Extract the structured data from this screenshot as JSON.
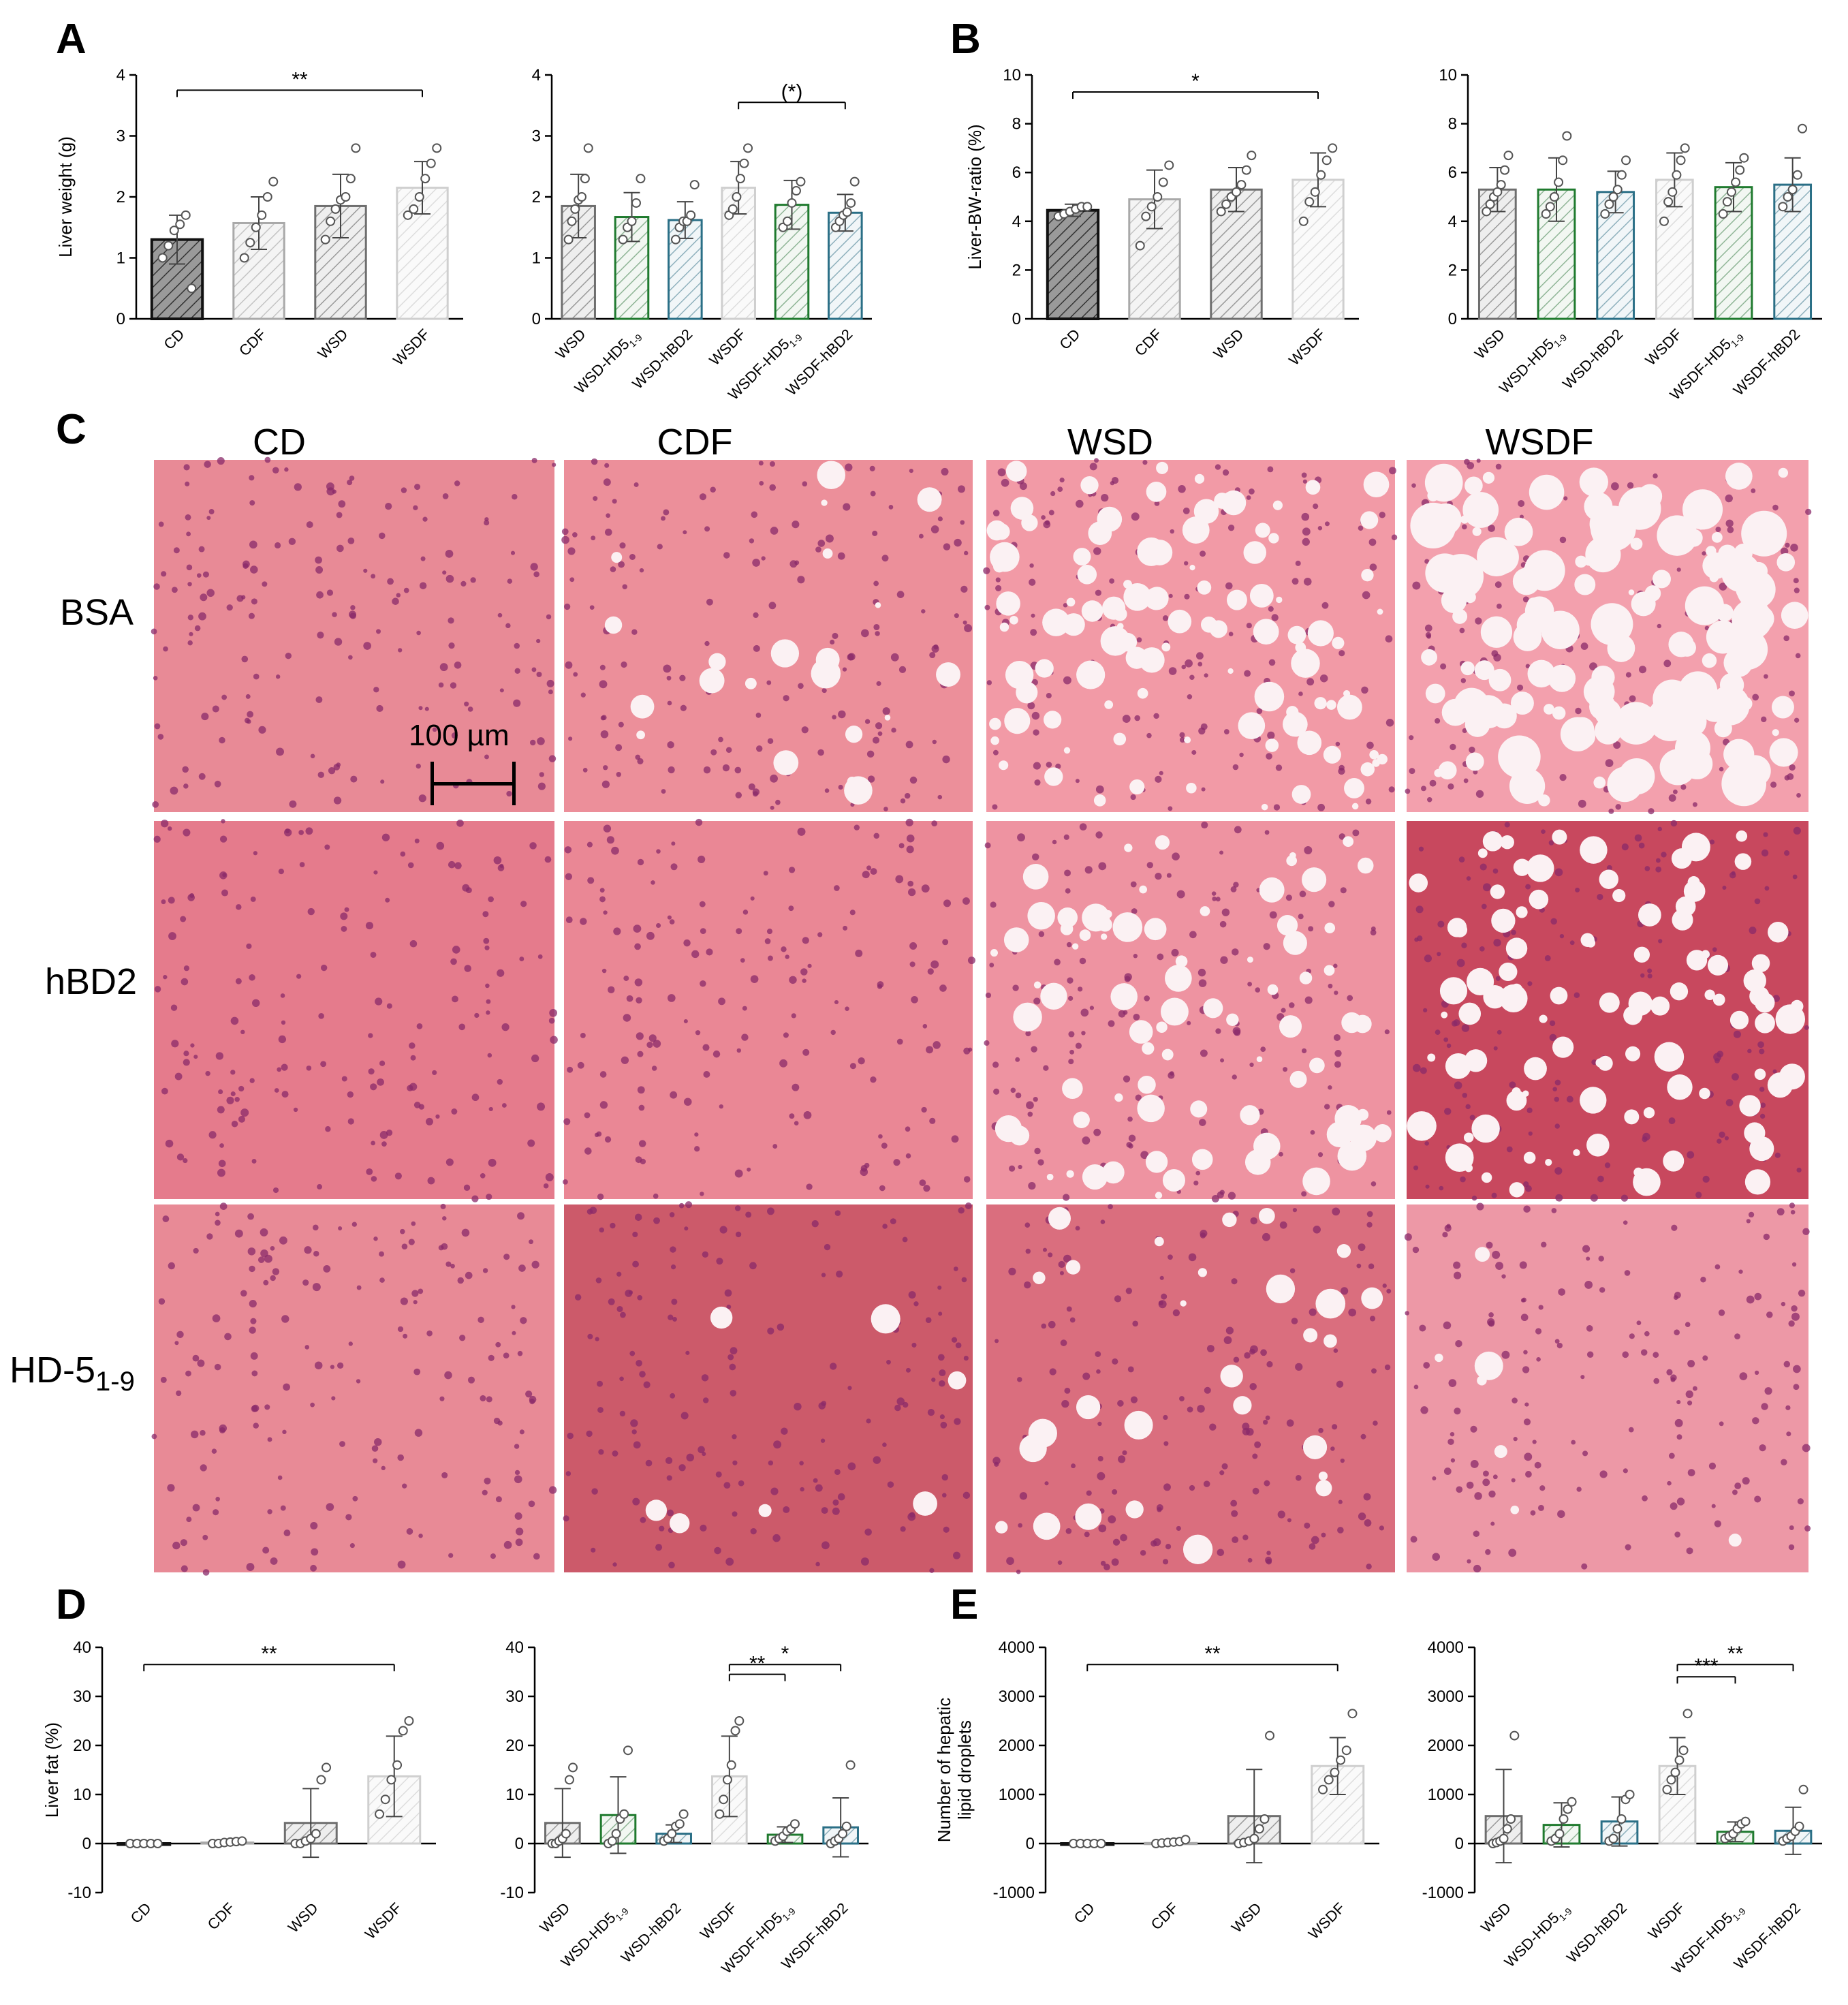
{
  "panel_letters": [
    "A",
    "B",
    "C",
    "D",
    "E"
  ],
  "grid": {
    "columns": [
      "CD",
      "CDF",
      "WSD",
      "WSDF"
    ],
    "rows": [
      "BSA",
      "hBD2",
      "HD-5"
    ],
    "row_subscript": "1-9",
    "scale_bar_label": "100 µm"
  },
  "colors": {
    "black_bar": "#222222",
    "light_grey": "#b8b8b8",
    "dark_grey": "#7a7a7a",
    "pale_grey": "#d9d9d9",
    "green": "#1f7a2e",
    "teal": "#2a6f86",
    "tissue_pink": "#e46a7c",
    "nucleus": "#8a2a6a"
  },
  "chart_data": [
    {
      "type": "bar",
      "ylabel": "Liver weight (g)",
      "ylim": [
        0,
        4
      ],
      "yticks": [
        0,
        1,
        2,
        3,
        4
      ],
      "categories": [
        "CD",
        "CDF",
        "WSD",
        "WSDF"
      ],
      "values": [
        1.3,
        1.57,
        1.85,
        2.15
      ],
      "errors": [
        0.4,
        0.43,
        0.52,
        0.43
      ],
      "bar_colors": [
        "black_bar",
        "light_grey",
        "dark_grey",
        "pale_grey"
      ],
      "points": [
        [
          1.0,
          1.2,
          1.45,
          1.55,
          1.7,
          0.5
        ],
        [
          1.0,
          1.25,
          1.5,
          1.7,
          2.0,
          2.25
        ],
        [
          1.3,
          1.6,
          1.8,
          1.95,
          2.0,
          2.3,
          2.8
        ],
        [
          1.7,
          1.8,
          2.0,
          2.3,
          2.55,
          2.8
        ]
      ],
      "brackets": [
        {
          "from": 0,
          "to": 3,
          "level": 3.75,
          "label": "**"
        }
      ]
    },
    {
      "type": "bar",
      "ylabel": "",
      "ylim": [
        0,
        4
      ],
      "yticks": [
        0,
        1,
        2,
        3,
        4
      ],
      "categories": [
        "WSD",
        "WSD-HD5",
        "WSD-hBD2",
        "WSDF",
        "WSDF-HD5",
        "WSDF-hBD2"
      ],
      "subscript": [
        "",
        "1-9",
        "",
        "",
        "1-9",
        ""
      ],
      "values": [
        1.85,
        1.67,
        1.62,
        2.15,
        1.87,
        1.74
      ],
      "errors": [
        0.52,
        0.4,
        0.3,
        0.43,
        0.4,
        0.3
      ],
      "bar_colors": [
        "dark_grey",
        "green",
        "teal",
        "pale_grey",
        "green",
        "teal"
      ],
      "points": [
        [
          1.3,
          1.6,
          1.8,
          1.95,
          2.0,
          2.3,
          2.8
        ],
        [
          1.3,
          1.5,
          1.6,
          1.9,
          2.3
        ],
        [
          1.3,
          1.5,
          1.6,
          1.6,
          1.7,
          2.2
        ],
        [
          1.7,
          1.8,
          2.0,
          2.3,
          2.55,
          2.8
        ],
        [
          1.5,
          1.6,
          1.9,
          2.1,
          2.25
        ],
        [
          1.5,
          1.6,
          1.7,
          1.75,
          1.9,
          2.25
        ]
      ],
      "brackets": [
        {
          "from": 3,
          "to": 5,
          "level": 3.55,
          "label": "(*)"
        }
      ]
    },
    {
      "type": "bar",
      "ylabel": "Liver-BW-ratio (%)",
      "ylim": [
        0,
        10
      ],
      "yticks": [
        0,
        2,
        4,
        6,
        8,
        10
      ],
      "categories": [
        "CD",
        "CDF",
        "WSD",
        "WSDF"
      ],
      "values": [
        4.45,
        4.9,
        5.3,
        5.7
      ],
      "errors": [
        0.25,
        1.2,
        0.9,
        1.1
      ],
      "bar_colors": [
        "black_bar",
        "light_grey",
        "dark_grey",
        "pale_grey"
      ],
      "points": [
        [
          4.2,
          4.3,
          4.4,
          4.5,
          4.6,
          4.6
        ],
        [
          3.0,
          4.2,
          4.6,
          5.0,
          5.6,
          6.3
        ],
        [
          4.4,
          4.7,
          5.0,
          5.2,
          5.5,
          6.1,
          6.7
        ],
        [
          4.0,
          4.8,
          5.2,
          5.9,
          6.5,
          7.0
        ]
      ],
      "brackets": [
        {
          "from": 0,
          "to": 3,
          "level": 9.3,
          "label": "*"
        }
      ]
    },
    {
      "type": "bar",
      "ylabel": "",
      "ylim": [
        0,
        10
      ],
      "yticks": [
        0,
        2,
        4,
        6,
        8,
        10
      ],
      "categories": [
        "WSD",
        "WSD-HD5",
        "WSD-hBD2",
        "WSDF",
        "WSDF-HD5",
        "WSDF-hBD2"
      ],
      "subscript": [
        "",
        "1-9",
        "",
        "",
        "1-9",
        ""
      ],
      "values": [
        5.3,
        5.3,
        5.2,
        5.7,
        5.4,
        5.5
      ],
      "errors": [
        0.9,
        1.3,
        0.85,
        1.1,
        1.0,
        1.1
      ],
      "bar_colors": [
        "dark_grey",
        "green",
        "teal",
        "pale_grey",
        "green",
        "teal"
      ],
      "points": [
        [
          4.4,
          4.7,
          5.0,
          5.2,
          5.5,
          6.1,
          6.7
        ],
        [
          4.3,
          4.6,
          5.0,
          5.6,
          6.5,
          7.5
        ],
        [
          4.3,
          4.7,
          5.0,
          5.3,
          5.9,
          6.5
        ],
        [
          4.0,
          4.8,
          5.2,
          5.9,
          6.5,
          7.0
        ],
        [
          4.3,
          4.8,
          5.2,
          5.6,
          6.1,
          6.6
        ],
        [
          4.6,
          5.0,
          5.3,
          5.9,
          7.8
        ]
      ],
      "brackets": []
    },
    {
      "type": "bar",
      "ylabel": "Liver fat (%)",
      "ylim": [
        -10,
        40
      ],
      "yticks": [
        -10,
        0,
        10,
        20,
        30,
        40
      ],
      "categories": [
        "CD",
        "CDF",
        "WSD",
        "WSDF"
      ],
      "values": [
        0.0,
        0.2,
        4.2,
        13.7
      ],
      "errors": [
        0,
        0,
        7.0,
        8.2
      ],
      "bar_colors": [
        "black_bar",
        "light_grey",
        "dark_grey",
        "pale_grey"
      ],
      "points": [
        [
          0,
          0,
          0,
          0,
          0
        ],
        [
          0,
          0,
          0.2,
          0.3,
          0.4,
          0.5
        ],
        [
          0,
          0,
          0.5,
          1.0,
          2.0,
          13.0,
          15.5
        ],
        [
          6.0,
          9.0,
          13.0,
          16.0,
          23.0,
          25.0
        ]
      ],
      "brackets": [
        {
          "from": 0,
          "to": 3,
          "level": 36.5,
          "label": "**"
        }
      ]
    },
    {
      "type": "bar",
      "ylabel": "",
      "ylim": [
        -10,
        40
      ],
      "yticks": [
        -10,
        0,
        10,
        20,
        30,
        40
      ],
      "categories": [
        "WSD",
        "WSD-HD5",
        "WSD-hBD2",
        "WSDF",
        "WSDF-HD5",
        "WSDF-hBD2"
      ],
      "subscript": [
        "",
        "1-9",
        "",
        "",
        "1-9",
        ""
      ],
      "values": [
        4.2,
        5.8,
        2.0,
        13.7,
        1.8,
        3.3
      ],
      "errors": [
        7.0,
        7.8,
        1.8,
        8.2,
        1.6,
        6.0
      ],
      "bar_colors": [
        "dark_grey",
        "green",
        "teal",
        "pale_grey",
        "green",
        "teal"
      ],
      "points": [
        [
          0,
          0,
          0.5,
          1.0,
          2.0,
          13.0,
          15.5
        ],
        [
          0,
          0.5,
          2.0,
          5.0,
          6.0,
          19.0
        ],
        [
          0.5,
          1.0,
          2.0,
          3.5,
          4.0,
          6.0
        ],
        [
          6.0,
          9.0,
          13.0,
          16.0,
          23.0,
          25.0
        ],
        [
          0.5,
          1.0,
          1.5,
          2.5,
          3.0,
          4.0
        ],
        [
          0,
          0.5,
          1.0,
          2.0,
          3.5,
          16.0
        ]
      ],
      "brackets": [
        {
          "from": 3,
          "to": 4,
          "level": 34.5,
          "label": "**"
        },
        {
          "from": 3,
          "to": 5,
          "level": 36.5,
          "label": "*"
        }
      ]
    },
    {
      "type": "bar",
      "ylabel": "Number of hepatic lipid droplets",
      "ylim": [
        -1000,
        4000
      ],
      "yticks": [
        -1000,
        0,
        1000,
        2000,
        3000,
        4000
      ],
      "categories": [
        "CD",
        "CDF",
        "WSD",
        "WSDF"
      ],
      "values": [
        0,
        10,
        560,
        1580
      ],
      "errors": [
        0,
        0,
        950,
        580
      ],
      "bar_colors": [
        "black_bar",
        "light_grey",
        "dark_grey",
        "pale_grey"
      ],
      "points": [
        [
          0,
          0,
          0,
          0,
          0
        ],
        [
          0,
          10,
          20,
          30,
          40,
          80
        ],
        [
          0,
          20,
          50,
          100,
          300,
          500,
          2200
        ],
        [
          1100,
          1300,
          1450,
          1700,
          1900,
          2650
        ]
      ],
      "brackets": [
        {
          "from": 0,
          "to": 3,
          "level": 3650,
          "label": "**"
        }
      ]
    },
    {
      "type": "bar",
      "ylabel": "",
      "ylim": [
        -1000,
        4000
      ],
      "yticks": [
        -1000,
        0,
        1000,
        2000,
        3000,
        4000
      ],
      "categories": [
        "WSD",
        "WSD-HD5",
        "WSD-hBD2",
        "WSDF",
        "WSDF-HD5",
        "WSDF-hBD2"
      ],
      "subscript": [
        "",
        "1-9",
        "",
        "",
        "1-9",
        ""
      ],
      "values": [
        560,
        380,
        450,
        1580,
        240,
        260
      ],
      "errors": [
        950,
        450,
        500,
        580,
        200,
        480
      ],
      "bar_colors": [
        "dark_grey",
        "green",
        "teal",
        "pale_grey",
        "green",
        "teal"
      ],
      "points": [
        [
          0,
          20,
          50,
          100,
          300,
          500,
          2200
        ],
        [
          50,
          100,
          200,
          500,
          700,
          850
        ],
        [
          50,
          100,
          300,
          500,
          900,
          1000
        ],
        [
          1100,
          1300,
          1450,
          1700,
          1900,
          2650
        ],
        [
          100,
          150,
          200,
          300,
          400,
          450
        ],
        [
          50,
          100,
          150,
          250,
          350,
          1100
        ]
      ],
      "brackets": [
        {
          "from": 3,
          "to": 4,
          "level": 3400,
          "label": "***"
        },
        {
          "from": 3,
          "to": 5,
          "level": 3650,
          "label": "**"
        }
      ]
    }
  ]
}
